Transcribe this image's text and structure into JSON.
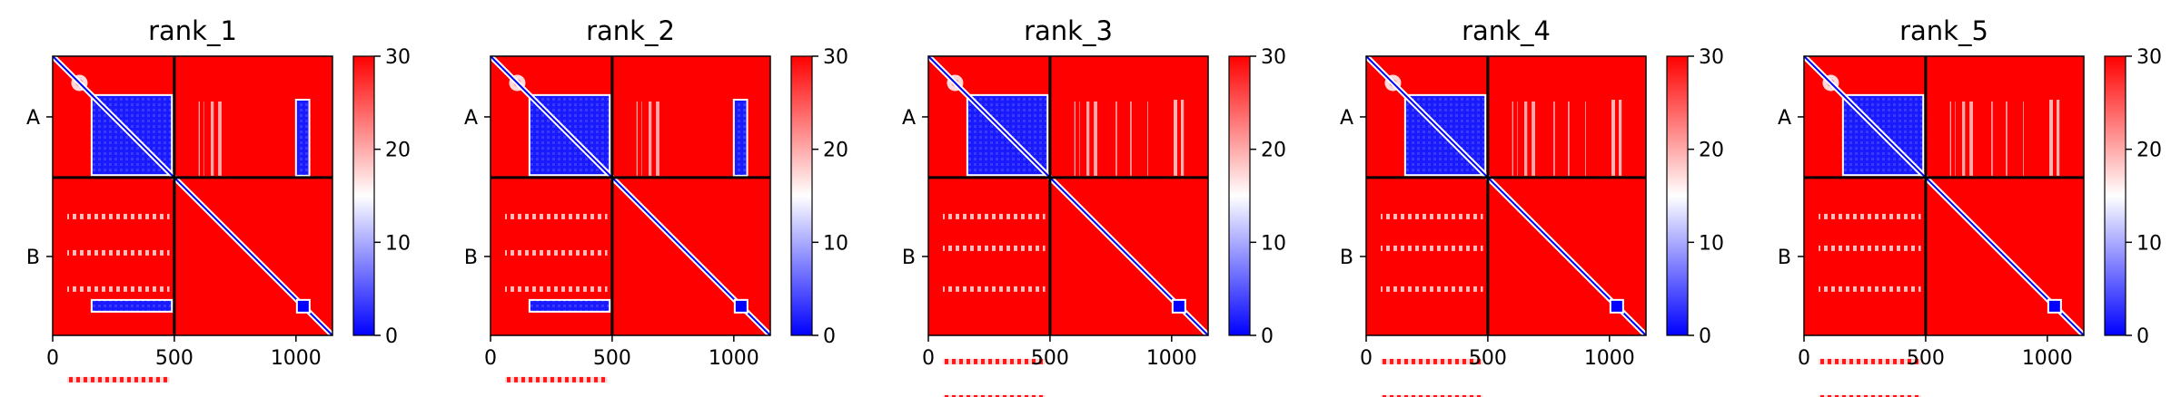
{
  "chart_data": {
    "type": "heatmap",
    "colormap": {
      "low": "#0000ff",
      "mid": "#ffffff",
      "high": "#ff0000",
      "range": [
        0,
        30
      ]
    },
    "colorbar_ticks": [
      "0",
      "10",
      "20",
      "30"
    ],
    "x_ticks": [
      {
        "value": 0,
        "label": "0"
      },
      {
        "value": 500,
        "label": "500"
      },
      {
        "value": 1000,
        "label": "1000"
      }
    ],
    "x_range": [
      0,
      1150
    ],
    "chains": [
      {
        "label": "A",
        "start": 0,
        "end": 500
      },
      {
        "label": "B",
        "start": 500,
        "end": 1150
      }
    ],
    "panels": [
      {
        "title": "rank_1",
        "hot_column": 1030,
        "low_block_ab": true
      },
      {
        "title": "rank_2",
        "hot_column": 1030,
        "low_block_ab": true
      },
      {
        "title": "rank_3",
        "hot_column": null,
        "low_block_ab": false
      },
      {
        "title": "rank_4",
        "hot_column": null,
        "low_block_ab": false
      },
      {
        "title": "rank_5",
        "hot_column": null,
        "low_block_ab": false
      }
    ]
  }
}
